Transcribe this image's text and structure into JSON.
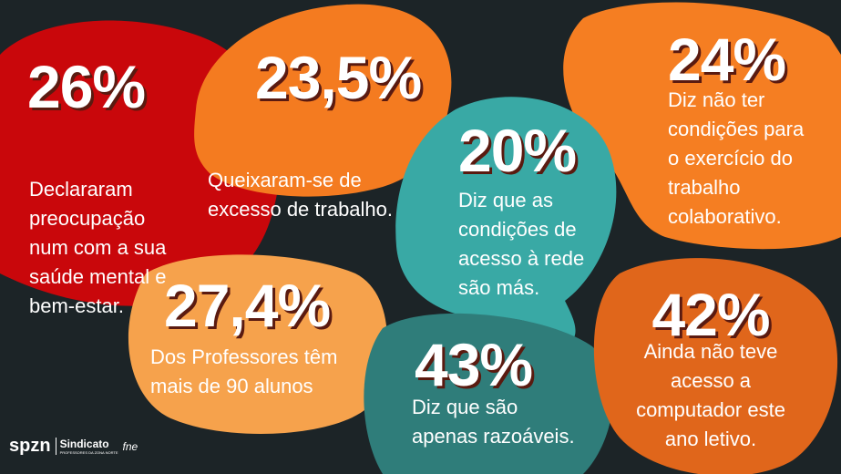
{
  "stats": [
    {
      "value": "26%",
      "lines": [
        "Declararam",
        "preocupação",
        "num com a sua",
        "saúde mental e",
        "bem-estar."
      ]
    },
    {
      "value": "23,5%",
      "lines": [
        "Queixaram-se de",
        "excesso de trabalho."
      ]
    },
    {
      "value": "20%",
      "lines": [
        "Diz que as",
        "condições de",
        "acesso à rede",
        "são más."
      ]
    },
    {
      "value": "24%",
      "lines": [
        "Diz não ter",
        "condições para",
        "o exercício do",
        "trabalho",
        "colaborativo."
      ]
    },
    {
      "value": "27,4%",
      "lines": [
        "Dos Professores têm",
        "mais de 90 alunos"
      ]
    },
    {
      "value": "43%",
      "lines": [
        "Diz que são",
        "apenas razoáveis."
      ]
    },
    {
      "value": "42%",
      "lines": [
        "Ainda não teve",
        "acesso a",
        "computador este",
        "ano letivo."
      ]
    }
  ],
  "logo": {
    "brand": "spzn",
    "name": "Sindicato",
    "subtitle": "PROFESSORES DA ZONA NORTE",
    "partner": "fne"
  }
}
